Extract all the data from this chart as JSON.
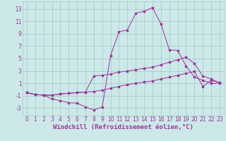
{
  "xlabel": "Windchill (Refroidissement éolien,°C)",
  "background_color": "#cce8e8",
  "grid_color": "#aacccc",
  "line_color": "#993399",
  "xlim": [
    -0.5,
    23.5
  ],
  "ylim": [
    -4.2,
    14.2
  ],
  "xticks": [
    0,
    1,
    2,
    3,
    4,
    5,
    6,
    7,
    8,
    9,
    10,
    11,
    12,
    13,
    14,
    15,
    16,
    17,
    18,
    19,
    20,
    21,
    22,
    23
  ],
  "yticks": [
    -3,
    -1,
    1,
    3,
    5,
    7,
    9,
    11,
    13
  ],
  "line1_x": [
    0,
    1,
    2,
    3,
    4,
    5,
    6,
    7,
    8,
    9,
    10,
    11,
    12,
    13,
    14,
    15,
    16,
    17,
    18,
    19,
    20,
    21,
    22,
    23
  ],
  "line1_y": [
    -0.5,
    -0.8,
    -0.9,
    -1.5,
    -1.8,
    -2.1,
    -2.2,
    -2.8,
    -3.3,
    -2.8,
    5.5,
    9.3,
    9.6,
    12.3,
    12.6,
    13.2,
    10.6,
    6.4,
    6.3,
    3.8,
    2.0,
    1.5,
    1.0,
    1.0
  ],
  "line2_x": [
    0,
    1,
    2,
    3,
    4,
    5,
    6,
    7,
    8,
    9,
    10,
    11,
    12,
    13,
    14,
    15,
    16,
    17,
    18,
    19,
    20,
    21,
    22,
    23
  ],
  "line2_y": [
    -0.5,
    -0.8,
    -0.9,
    -0.9,
    -0.7,
    -0.6,
    -0.5,
    -0.4,
    2.2,
    2.3,
    2.5,
    2.8,
    3.0,
    3.2,
    3.4,
    3.6,
    4.0,
    4.4,
    4.8,
    5.2,
    4.2,
    2.2,
    1.7,
    1.1
  ],
  "line3_x": [
    0,
    1,
    2,
    3,
    4,
    5,
    6,
    7,
    8,
    9,
    10,
    11,
    12,
    13,
    14,
    15,
    16,
    17,
    18,
    19,
    20,
    21,
    22,
    23
  ],
  "line3_y": [
    -0.5,
    -0.8,
    -0.9,
    -0.9,
    -0.7,
    -0.6,
    -0.5,
    -0.4,
    -0.3,
    -0.1,
    0.2,
    0.5,
    0.8,
    1.0,
    1.2,
    1.4,
    1.7,
    2.0,
    2.3,
    2.6,
    2.9,
    0.5,
    1.5,
    1.1
  ],
  "tick_fontsize": 5.5,
  "xlabel_fontsize": 6.5
}
